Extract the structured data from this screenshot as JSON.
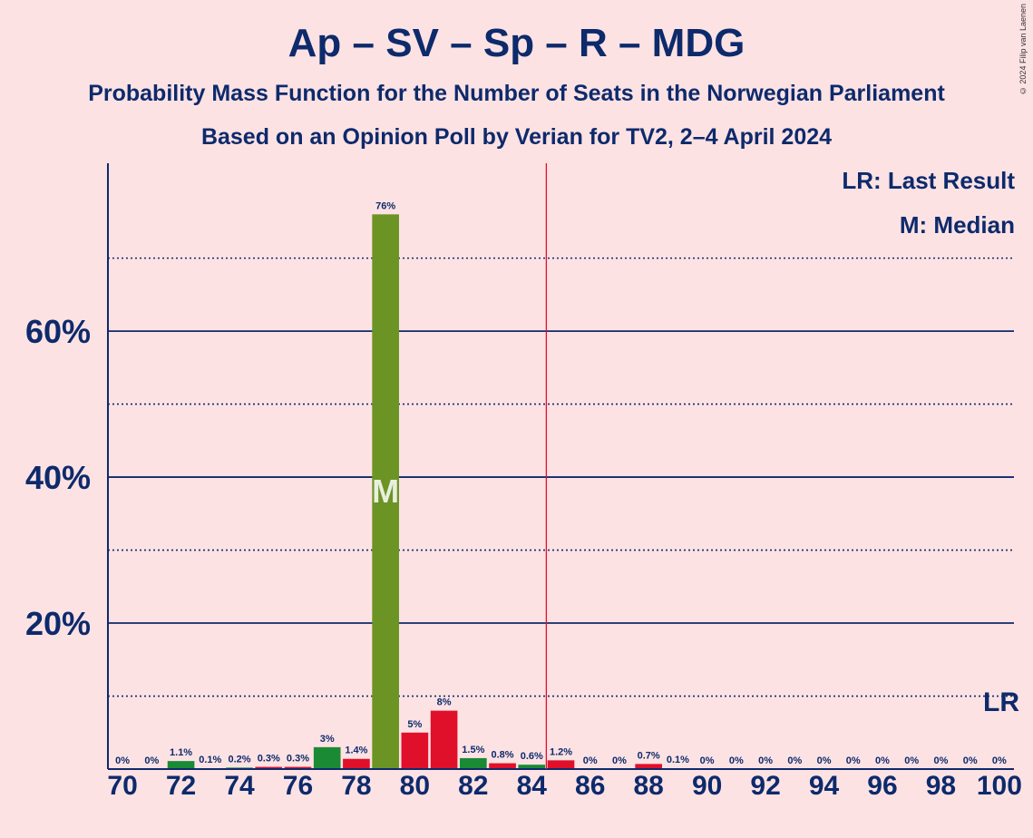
{
  "title": "Ap – SV – Sp – R – MDG",
  "subtitle_1": "Probability Mass Function for the Number of Seats in the Norwegian Parliament",
  "subtitle_2": "Based on an Opinion Poll by Verian for TV2, 2–4 April 2024",
  "copyright": "© 2024 Filip van Laenen",
  "legend": {
    "last_result": "LR: Last Result",
    "median": "M: Median"
  },
  "markers": {
    "median_label": "M",
    "last_result_label": "LR"
  },
  "colors": {
    "background": "#fde2e4",
    "text": "#0d2a6b",
    "green_dark": "#1a8a35",
    "green_olive": "#6b9425",
    "red": "#e0102a",
    "last_result_line": "#e0102a"
  },
  "chart_data": {
    "type": "bar",
    "x": [
      70,
      71,
      72,
      73,
      74,
      75,
      76,
      77,
      78,
      79,
      80,
      81,
      82,
      83,
      84,
      85,
      86,
      87,
      88,
      89,
      90,
      91,
      92,
      93,
      94,
      95,
      96,
      97,
      98,
      99,
      100
    ],
    "values": [
      0,
      0,
      1.1,
      0.1,
      0.2,
      0.3,
      0.3,
      3,
      1.4,
      76,
      5,
      8,
      1.5,
      0.8,
      0.6,
      1.2,
      0,
      0,
      0.7,
      0.1,
      0,
      0,
      0,
      0,
      0,
      0,
      0,
      0,
      0,
      0,
      0
    ],
    "value_labels": [
      "0%",
      "0%",
      "1.1%",
      "0.1%",
      "0.2%",
      "0.3%",
      "0.3%",
      "3%",
      "1.4%",
      "76%",
      "5%",
      "8%",
      "1.5%",
      "0.8%",
      "0.6%",
      "1.2%",
      "0%",
      "0%",
      "0.7%",
      "0.1%",
      "0%",
      "0%",
      "0%",
      "0%",
      "0%",
      "0%",
      "0%",
      "0%",
      "0%",
      "0%",
      "0%"
    ],
    "bar_colors": [
      "green_dark",
      "green_dark",
      "green_dark",
      "green_dark",
      "green_dark",
      "red",
      "red",
      "green_dark",
      "red",
      "green_olive",
      "red",
      "red",
      "green_dark",
      "red",
      "green_dark",
      "red",
      "red",
      "red",
      "red",
      "red",
      "red",
      "red",
      "red",
      "red",
      "red",
      "red",
      "red",
      "red",
      "red",
      "red",
      "red"
    ],
    "x_ticks": [
      70,
      72,
      74,
      76,
      78,
      80,
      82,
      84,
      86,
      88,
      90,
      92,
      94,
      96,
      98,
      100
    ],
    "y_ticks": [
      20,
      40,
      60
    ],
    "y_tick_labels": [
      "20%",
      "40%",
      "60%"
    ],
    "y_minor_gridlines": [
      10,
      30,
      50,
      70
    ],
    "ylim": [
      0,
      83
    ],
    "xlim": [
      69.5,
      100.5
    ],
    "median": 79,
    "last_result_line": 84.5,
    "last_result": 100
  }
}
